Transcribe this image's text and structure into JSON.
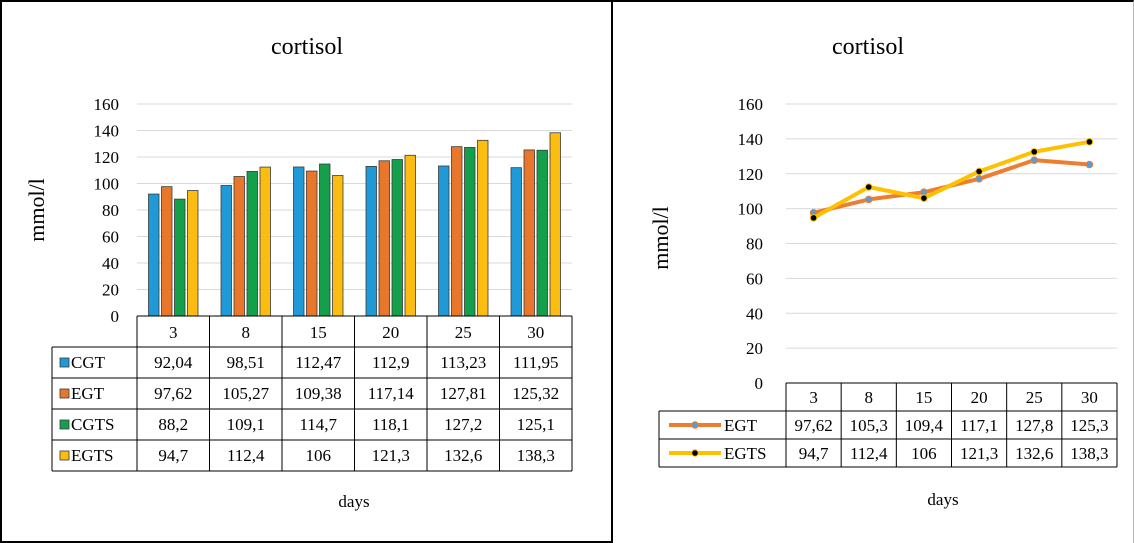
{
  "charts": [
    {
      "type": "bar",
      "title": "cortisol",
      "ylabel": "mmol/l",
      "xlabel": "days",
      "categories": [
        "3",
        "8",
        "15",
        "20",
        "25",
        "30"
      ],
      "ylim": [
        0,
        160
      ],
      "yticks": [
        "0",
        "20",
        "40",
        "60",
        "80",
        "100",
        "120",
        "140",
        "160"
      ],
      "grid": true,
      "legend": "data table",
      "series": [
        {
          "name": "CGT",
          "color": "#1f9ad7",
          "values": [
            92.04,
            98.51,
            112.47,
            112.9,
            113.23,
            111.95
          ],
          "labels": [
            "92,04",
            "98,51",
            "112,47",
            "112,9",
            "113,23",
            "111,95"
          ]
        },
        {
          "name": "EGT",
          "color": "#e8762b",
          "values": [
            97.62,
            105.27,
            109.38,
            117.14,
            127.81,
            125.32
          ],
          "labels": [
            "97,62",
            "105,27",
            "109,38",
            "117,14",
            "127,81",
            "125,32"
          ]
        },
        {
          "name": "CGTS",
          "color": "#14a04a",
          "values": [
            88.2,
            109.1,
            114.7,
            118.1,
            127.2,
            125.1
          ],
          "labels": [
            "88,2",
            "109,1",
            "114,7",
            "118,1",
            "127,2",
            "125,1"
          ]
        },
        {
          "name": "EGTS",
          "color": "#fbbd12",
          "values": [
            94.7,
            112.4,
            106,
            121.3,
            132.6,
            138.3
          ],
          "labels": [
            "94,7",
            "112,4",
            "106",
            "121,3",
            "132,6",
            "138,3"
          ]
        }
      ]
    },
    {
      "type": "line",
      "title": "cortisol",
      "ylabel": "mmol/l",
      "xlabel": "days",
      "categories": [
        "3",
        "8",
        "15",
        "20",
        "25",
        "30"
      ],
      "ylim": [
        0,
        160
      ],
      "yticks": [
        "0",
        "20",
        "40",
        "60",
        "80",
        "100",
        "120",
        "140",
        "160"
      ],
      "grid": true,
      "legend": "data table",
      "series": [
        {
          "name": "EGT",
          "color": "#ed7d31",
          "marker_color": "#5b9bd5",
          "values": [
            97.62,
            105.3,
            109.4,
            117.1,
            127.8,
            125.3
          ],
          "labels": [
            "97,62",
            "105,3",
            "109,4",
            "117,1",
            "127,8",
            "125,3"
          ]
        },
        {
          "name": "EGTS",
          "color": "#ffc000",
          "marker_color": "#000000",
          "values": [
            94.7,
            112.4,
            106,
            121.3,
            132.6,
            138.3
          ],
          "labels": [
            "94,7",
            "112,4",
            "106",
            "121,3",
            "132,6",
            "138,3"
          ]
        }
      ]
    }
  ]
}
